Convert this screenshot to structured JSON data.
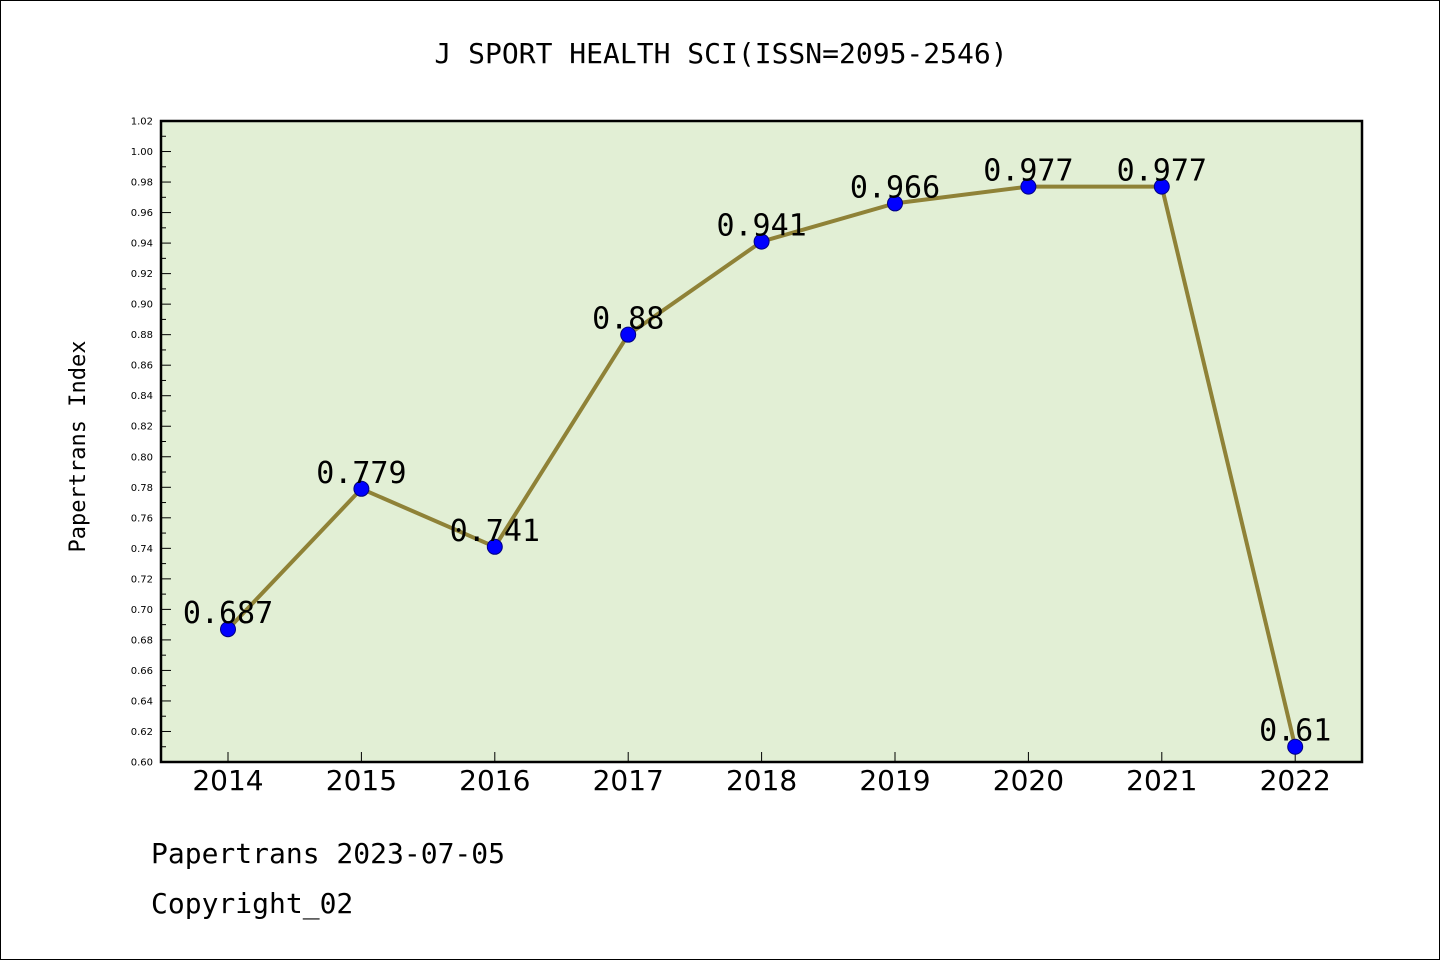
{
  "colors": {
    "plot_bg": "#e2efd5",
    "line": "#8f8237",
    "marker": "#0000ff",
    "axis": "#000000"
  },
  "footer": {
    "date_line": "Papertrans 2023-07-05",
    "copyright": "Copyright_02"
  },
  "chart_data": {
    "type": "line",
    "title": "J SPORT HEALTH SCI(ISSN=2095-2546)",
    "xlabel": "",
    "ylabel": "Papertrans Index",
    "categories": [
      "2014",
      "2015",
      "2016",
      "2017",
      "2018",
      "2019",
      "2020",
      "2021",
      "2022"
    ],
    "series": [
      {
        "values": [
          0.687,
          0.779,
          0.741,
          0.88,
          0.941,
          0.966,
          0.977,
          0.977,
          0.61
        ]
      }
    ],
    "data_labels": [
      "0.687",
      "0.779",
      "0.741",
      "0.88",
      "0.941",
      "0.966",
      "0.977",
      "0.977",
      "0.61"
    ],
    "ylim": [
      0.6,
      1.02
    ],
    "yticks": [
      "0.60",
      "0.62",
      "0.64",
      "0.66",
      "0.68",
      "0.70",
      "0.72",
      "0.74",
      "0.76",
      "0.78",
      "0.80",
      "0.82",
      "0.84",
      "0.86",
      "0.88",
      "0.90",
      "0.92",
      "0.94",
      "0.96",
      "0.98",
      "1.00",
      "1.02"
    ],
    "grid": false,
    "legend": "none"
  }
}
